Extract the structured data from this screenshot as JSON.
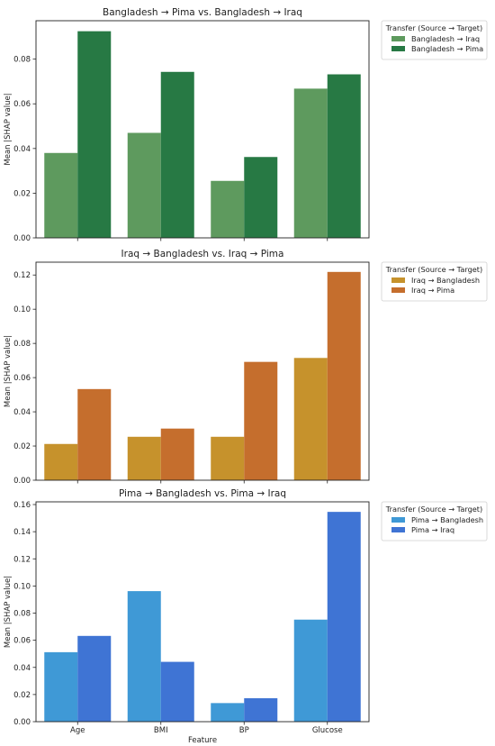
{
  "chart_data": [
    {
      "type": "bar",
      "title": "Bangladesh → Pima vs. Bangladesh → Iraq",
      "xlabel": "",
      "ylabel": "Mean |SHAP value|",
      "categories": [
        "Age",
        "BMI",
        "BP",
        "Glucose"
      ],
      "ylim": [
        0,
        0.0972
      ],
      "yticks": [
        "0.00",
        "0.02",
        "0.04",
        "0.06",
        "0.08"
      ],
      "legend_title": "Transfer (Source → Target)",
      "legend_position": "outside right",
      "series": [
        {
          "name": "Bangladesh → Iraq",
          "color": "#5e9a5e",
          "values": [
            0.038,
            0.047,
            0.0255,
            0.0668
          ]
        },
        {
          "name": "Bangladesh → Pima",
          "color": "#277944",
          "values": [
            0.0925,
            0.0743,
            0.0362,
            0.0732
          ]
        }
      ]
    },
    {
      "type": "bar",
      "title": "Iraq → Bangladesh vs. Iraq → Pima",
      "xlabel": "",
      "ylabel": "Mean |SHAP value|",
      "categories": [
        "Age",
        "BMI",
        "BP",
        "Glucose"
      ],
      "ylim": [
        0,
        0.1275
      ],
      "yticks": [
        "0.00",
        "0.02",
        "0.04",
        "0.06",
        "0.08",
        "0.10",
        "0.12"
      ],
      "legend_title": "Transfer (Source → Target)",
      "legend_position": "outside right",
      "series": [
        {
          "name": "Iraq → Bangladesh",
          "color": "#c6922c",
          "values": [
            0.0212,
            0.0254,
            0.0254,
            0.0715
          ]
        },
        {
          "name": "Iraq → Pima",
          "color": "#c56e2d",
          "values": [
            0.0533,
            0.0302,
            0.0692,
            0.1218
          ]
        }
      ]
    },
    {
      "type": "bar",
      "title": "Pima → Bangladesh vs. Pima → Iraq",
      "xlabel": "Feature",
      "ylabel": "Mean |SHAP value|",
      "categories": [
        "Age",
        "BMI",
        "BP",
        "Glucose"
      ],
      "ylim": [
        0,
        0.162
      ],
      "yticks": [
        "0.00",
        "0.02",
        "0.04",
        "0.06",
        "0.08",
        "0.10",
        "0.12",
        "0.14",
        "0.16"
      ],
      "legend_title": "Transfer (Source → Target)",
      "legend_position": "outside right",
      "series": [
        {
          "name": "Pima → Bangladesh",
          "color": "#3f99d6",
          "values": [
            0.0512,
            0.0962,
            0.0137,
            0.0752
          ]
        },
        {
          "name": "Pima → Iraq",
          "color": "#3f74d4",
          "values": [
            0.0632,
            0.0441,
            0.0173,
            0.1546
          ]
        }
      ]
    }
  ]
}
